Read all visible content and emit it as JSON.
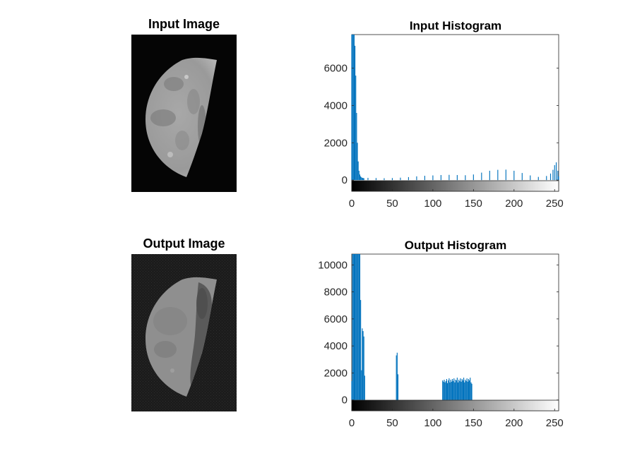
{
  "panels": {
    "input_image": {
      "title": "Input Image"
    },
    "output_image": {
      "title": "Output Image"
    }
  },
  "colors": {
    "bars": "#0072bd",
    "axes": "#262626",
    "background": "#ffffff"
  },
  "chart_data": [
    {
      "type": "bar",
      "title": "Input Histogram",
      "xlim": [
        0,
        255
      ],
      "ylim": [
        -600,
        7800
      ],
      "xticks": [
        0,
        50,
        100,
        150,
        200,
        250
      ],
      "yticks": [
        0,
        2000,
        4000,
        6000
      ],
      "colorbar": "grayscale 0-255",
      "x": [
        0,
        1,
        2,
        3,
        4,
        5,
        6,
        7,
        8,
        9,
        10,
        11,
        12,
        13,
        14,
        15,
        20,
        30,
        40,
        50,
        60,
        70,
        80,
        90,
        100,
        110,
        120,
        130,
        140,
        150,
        160,
        170,
        180,
        190,
        200,
        210,
        220,
        230,
        240,
        245,
        248,
        250,
        252,
        254,
        255
      ],
      "values": [
        7800,
        7800,
        7800,
        7800,
        7200,
        5600,
        3600,
        2000,
        1000,
        500,
        300,
        200,
        150,
        120,
        110,
        100,
        120,
        110,
        100,
        110,
        130,
        160,
        200,
        230,
        250,
        270,
        280,
        270,
        260,
        300,
        400,
        500,
        550,
        560,
        500,
        380,
        250,
        170,
        220,
        350,
        550,
        800,
        950,
        500,
        200
      ]
    },
    {
      "type": "bar",
      "title": "Output Histogram",
      "xlim": [
        0,
        255
      ],
      "ylim": [
        -800,
        10800
      ],
      "xticks": [
        0,
        50,
        100,
        150,
        200,
        250
      ],
      "yticks": [
        0,
        2000,
        4000,
        6000,
        8000,
        10000
      ],
      "colorbar": "grayscale 0-255",
      "x": [
        0,
        1,
        2,
        3,
        4,
        5,
        6,
        7,
        8,
        9,
        10,
        11,
        12,
        13,
        14,
        15,
        16,
        55,
        56,
        57,
        112,
        113,
        114,
        115,
        116,
        117,
        118,
        119,
        120,
        121,
        122,
        123,
        124,
        125,
        126,
        127,
        128,
        129,
        130,
        131,
        132,
        133,
        134,
        135,
        136,
        137,
        138,
        139,
        140,
        141,
        142,
        143,
        144,
        145,
        146,
        147,
        148
      ],
      "values": [
        1400,
        10800,
        10800,
        10800,
        10800,
        10800,
        10800,
        10800,
        10800,
        10800,
        10800,
        7400,
        2200,
        5300,
        5100,
        4700,
        1800,
        3300,
        3500,
        1900,
        1450,
        1350,
        1500,
        1300,
        1400,
        1550,
        1250,
        1450,
        1600,
        1300,
        1500,
        1350,
        1550,
        1400,
        1600,
        1300,
        1500,
        1450,
        1650,
        1300,
        1500,
        1400,
        1600,
        1350,
        1550,
        1450,
        1650,
        1300,
        1500,
        1400,
        1600,
        1350,
        1550,
        1450,
        1650,
        1300,
        1200
      ]
    }
  ]
}
